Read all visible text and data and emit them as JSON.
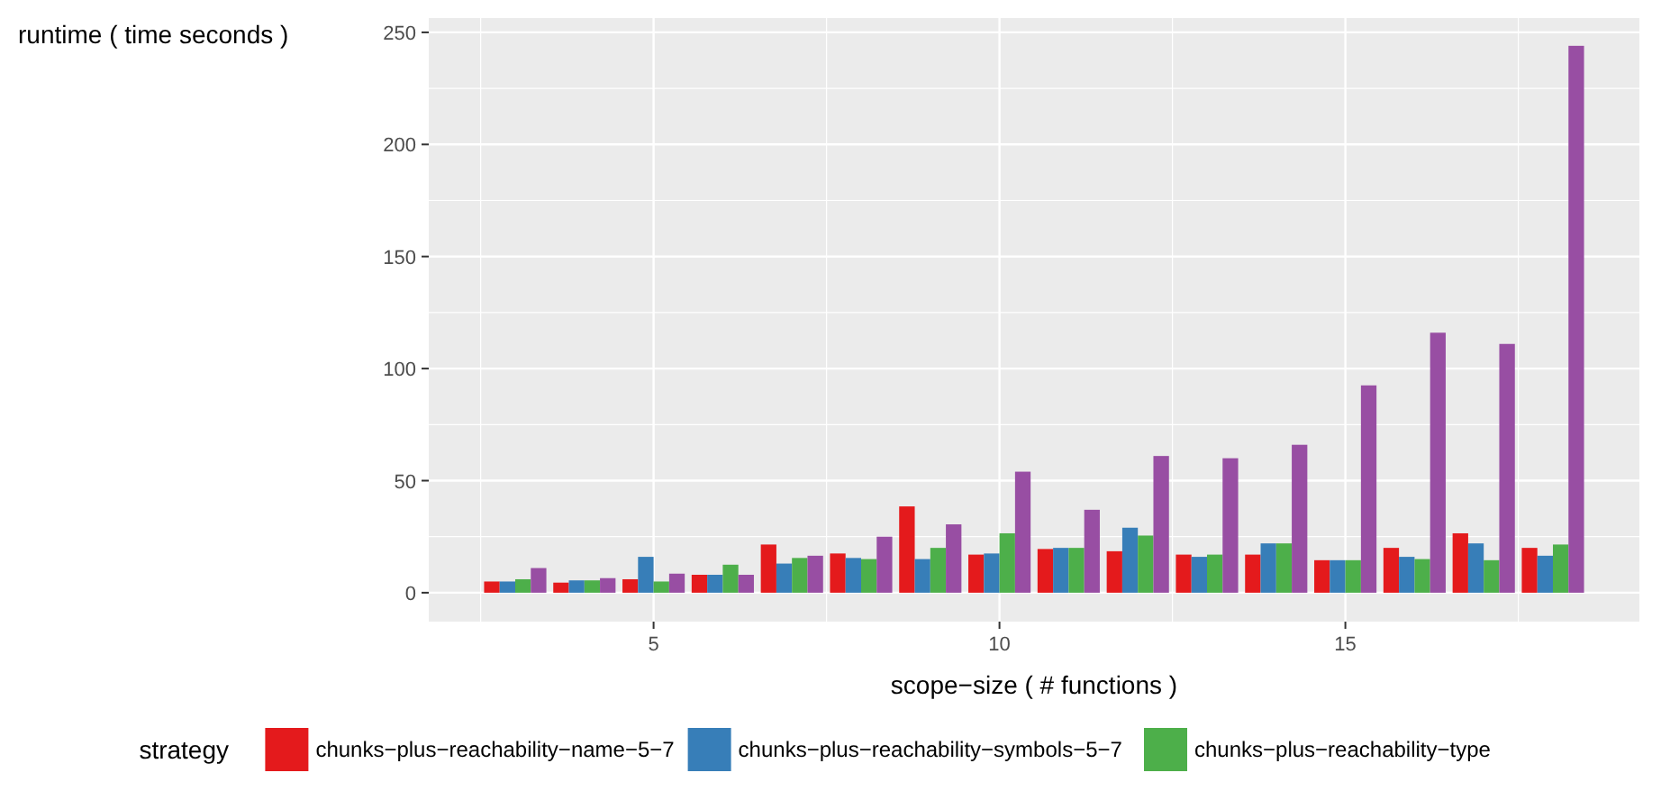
{
  "chart_data": {
    "type": "bar",
    "xlabel": "scope−size ( # functions )",
    "ylabel": "runtime ( time seconds )",
    "legend_title": "strategy",
    "x": [
      3,
      4,
      5,
      6,
      7,
      8,
      9,
      10,
      11,
      12,
      13,
      14,
      15,
      16,
      17,
      18
    ],
    "series": [
      {
        "name": "chunks−plus−reachability−name−5−7",
        "color": "#e41a1c",
        "values": [
          5,
          4.5,
          6,
          8,
          21.5,
          17.5,
          38.5,
          17,
          19.5,
          18.5,
          17,
          17,
          14.5,
          20,
          26.5,
          20
        ]
      },
      {
        "name": "chunks−plus−reachability−symbols−5−7",
        "color": "#377eb8",
        "values": [
          5,
          5.5,
          16,
          8,
          13,
          15.5,
          15,
          17.5,
          20,
          29,
          16,
          22,
          14.5,
          16,
          22,
          16.5
        ]
      },
      {
        "name": "chunks−plus−reachability−type",
        "color": "#4daf4a",
        "values": [
          6,
          5.5,
          5,
          12.5,
          15.5,
          15,
          20,
          26.5,
          20,
          25.5,
          17,
          22,
          14.5,
          15,
          14.5,
          21.5
        ]
      },
      {
        "color": "#984ea3",
        "values": [
          11,
          6.5,
          8.5,
          8,
          16.5,
          25,
          30.5,
          54,
          37,
          61,
          60,
          66,
          92.5,
          116,
          111,
          244
        ]
      }
    ],
    "xlim": [
      1.75,
      19.25
    ],
    "xticks": [
      5,
      10,
      15
    ],
    "ylim": [
      -12.9,
      256.4
    ],
    "yticks": [
      0,
      50,
      100,
      150,
      200,
      250
    ],
    "grid": true,
    "legend": "bottom"
  }
}
